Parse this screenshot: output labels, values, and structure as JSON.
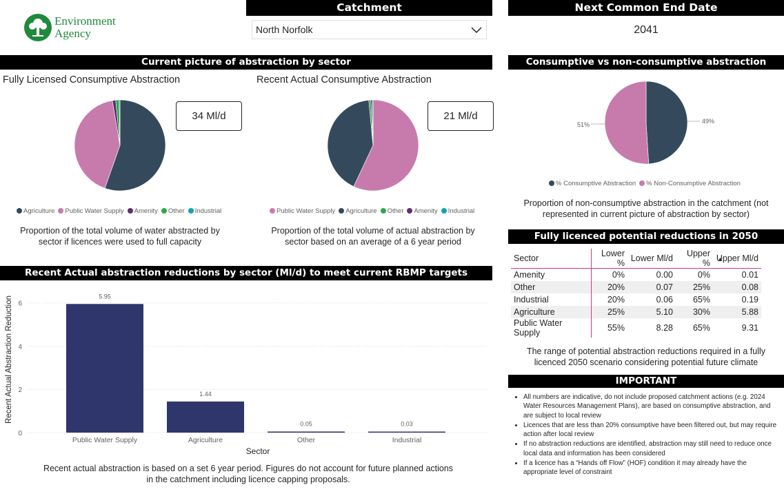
{
  "logo": {
    "line1": "Environment",
    "line2": "Agency"
  },
  "catchment": {
    "title": "Catchment",
    "selected": "North Norfolk"
  },
  "end_date": {
    "title": "Next Common End Date",
    "value": "2041"
  },
  "sector_section": {
    "title": "Current picture of abstraction by sector"
  },
  "licensed": {
    "title": "Fully Licensed Consumptive Abstraction",
    "kpi": "34 Ml/d",
    "caption": "Proportion of the total volume of water abstracted by sector if licences were used to full capacity",
    "legend": [
      {
        "label": "Agriculture",
        "color": "#344a5c"
      },
      {
        "label": "Public Water Supply",
        "color": "#c77bad"
      },
      {
        "label": "Amenity",
        "color": "#5e2f68"
      },
      {
        "label": "Other",
        "color": "#2ea84b"
      },
      {
        "label": "Industrial",
        "color": "#0ea5b5"
      }
    ]
  },
  "actual": {
    "title": "Recent Actual Consumptive Abstraction",
    "kpi": "21 Ml/d",
    "caption": "Proportion of the total volume of actual abstraction by sector based on an average of a 6 year period",
    "legend": [
      {
        "label": "Public Water Supply",
        "color": "#c77bad"
      },
      {
        "label": "Agriculture",
        "color": "#344a5c"
      },
      {
        "label": "Other",
        "color": "#2ea84b"
      },
      {
        "label": "Amenity",
        "color": "#5e2f68"
      },
      {
        "label": "Industrial",
        "color": "#0ea5b5"
      }
    ]
  },
  "consumptive": {
    "title": "Consumptive vs non-consumptive abstraction",
    "label_left": "51%",
    "label_right": "49%",
    "legend": [
      {
        "label": "% Consumptive Abstraction",
        "color": "#344a5c"
      },
      {
        "label": "% Non-Consumptive Abstraction",
        "color": "#c77bad"
      }
    ],
    "caption": "Proportion of non-consumptive abstraction in the catchment (not represented in current picture of abstraction by sector)"
  },
  "reductions_section": {
    "title": "Recent Actual abstraction reductions by sector (Ml/d) to meet current RBMP targets",
    "caption": "Recent actual abstraction is based on a set 6 year period. Figures do not account for future planned actions in the catchment including licence capping proposals."
  },
  "potential": {
    "title": "Fully licenced potential reductions in 2050",
    "headers": [
      "Sector",
      "Lower %",
      "Lower Ml/d",
      "Upper %",
      "Upper Ml/d"
    ],
    "rows": [
      [
        "Amenity",
        "0%",
        "0.00",
        "0%",
        "0.01"
      ],
      [
        "Other",
        "20%",
        "0.07",
        "25%",
        "0.08"
      ],
      [
        "Industrial",
        "20%",
        "0.06",
        "65%",
        "0.19"
      ],
      [
        "Agriculture",
        "25%",
        "5.10",
        "30%",
        "5.88"
      ],
      [
        "Public Water Supply",
        "55%",
        "8.28",
        "65%",
        "9.31"
      ]
    ],
    "caption": "The range of potential abstraction reductions required in a fully licenced 2050 scenario considering potential future climate"
  },
  "important": {
    "title": "IMPORTANT",
    "notes": [
      "All numbers are indicative, do not include proposed catchment actions (e.g. 2024 Water Resources Management Plans), are based on consumptive abstraction, and are subject to local review",
      "Licences that are less than 20% consumptive have been filtered out, but may require action after local review",
      "If no abstraction reductions are identified, abstraction may still need to reduce once local data and information has been considered",
      "If a licence has a “Hands off Flow” (HOF) condition it may already have the appropriate level of constraint"
    ]
  },
  "colors": {
    "accent_pink": "#c03b84",
    "bar": "#2e366b"
  },
  "chart_data": [
    {
      "type": "pie",
      "categories": [
        "Agriculture",
        "Public Water Supply",
        "Amenity",
        "Other",
        "Industrial"
      ],
      "values": [
        55.5,
        42,
        1.2,
        1.2,
        0.3
      ],
      "colors": [
        "#344a5c",
        "#c77bad",
        "#5e2f68",
        "#2ea84b",
        "#0ea5b5"
      ],
      "title": "Fully Licensed Consumptive Abstraction"
    },
    {
      "type": "pie",
      "categories": [
        "Public Water Supply",
        "Agriculture",
        "Other",
        "Amenity",
        "Industrial"
      ],
      "values": [
        57,
        41.5,
        0.7,
        0.5,
        0.3
      ],
      "colors": [
        "#c77bad",
        "#344a5c",
        "#2ea84b",
        "#5e2f68",
        "#0ea5b5"
      ],
      "title": "Recent Actual Consumptive Abstraction"
    },
    {
      "type": "pie",
      "categories": [
        "% Consumptive Abstraction",
        "% Non-Consumptive Abstraction"
      ],
      "values": [
        49,
        51
      ],
      "colors": [
        "#344a5c",
        "#c77bad"
      ],
      "title": "Consumptive vs non-consumptive abstraction"
    },
    {
      "type": "bar",
      "categories": [
        "Public Water Supply",
        "Agriculture",
        "Other",
        "Industrial"
      ],
      "values": [
        5.95,
        1.44,
        0.05,
        0.03
      ],
      "value_labels": [
        "5.95",
        "1.44",
        "0.05",
        "0.03"
      ],
      "title": "Recent Actual abstraction reductions by sector (Ml/d) to meet current RBMP targets",
      "xlabel": "Sector",
      "ylabel": "Recent Actual Abstraction Reduction",
      "ylim": [
        0,
        6.5
      ],
      "yticks": [
        0,
        2,
        4,
        6
      ],
      "grid": true
    }
  ]
}
